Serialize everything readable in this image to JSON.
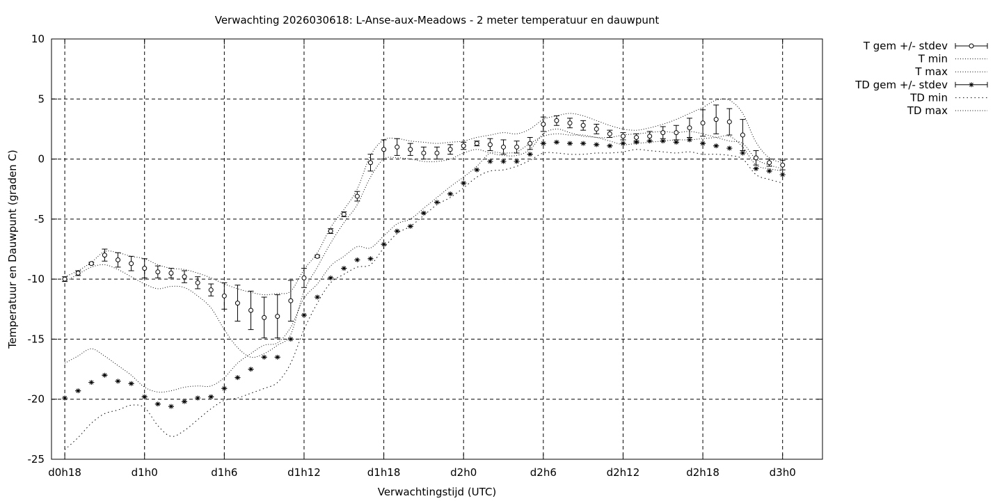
{
  "chart_data": {
    "type": "line",
    "title": "Verwachting 2026030618: L-Anse-aux-Meadows - 2 meter temperatuur en dauwpunt",
    "xlabel": "Verwachtingstijd (UTC)",
    "ylabel": "Temperatuur en Dauwpunt (graden C)",
    "ylim": [
      -25,
      10
    ],
    "xlim": [
      -1,
      57
    ],
    "grid": true,
    "legend": "top-right, outside plot",
    "x_unit": "hours after d0h0 (forecast base 2026030618)",
    "xticks": [
      {
        "x": 0,
        "label": "d0h18"
      },
      {
        "x": 6,
        "label": "d1h0"
      },
      {
        "x": 12,
        "label": "d1h6"
      },
      {
        "x": 18,
        "label": "d1h12"
      },
      {
        "x": 24,
        "label": "d1h18"
      },
      {
        "x": 30,
        "label": "d2h0"
      },
      {
        "x": 36,
        "label": "d2h6"
      },
      {
        "x": 42,
        "label": "d2h12"
      },
      {
        "x": 48,
        "label": "d2h18"
      },
      {
        "x": 54,
        "label": "d3h0"
      }
    ],
    "yticks": [
      10,
      5,
      0,
      -5,
      -10,
      -15,
      -20,
      -25
    ],
    "series": [
      {
        "name": "T gem +/- stdev",
        "style": "errorbars-circle",
        "color": "#000000",
        "x": [
          0,
          1,
          2,
          3,
          4,
          5,
          6,
          7,
          8,
          9,
          10,
          11,
          12,
          13,
          14,
          15,
          16,
          17,
          18,
          19,
          20,
          21,
          22,
          23,
          24,
          25,
          26,
          27,
          28,
          29,
          30,
          31,
          32,
          33,
          34,
          35,
          36,
          37,
          38,
          39,
          40,
          41,
          42,
          43,
          44,
          45,
          46,
          47,
          48,
          49,
          50,
          51,
          52,
          53,
          54
        ],
        "y": [
          -10.0,
          -9.5,
          -8.7,
          -8.0,
          -8.4,
          -8.7,
          -9.1,
          -9.4,
          -9.5,
          -9.8,
          -10.3,
          -10.9,
          -11.4,
          -12.0,
          -12.6,
          -13.2,
          -13.1,
          -11.8,
          -9.9,
          -8.1,
          -6.0,
          -4.6,
          -3.1,
          -0.3,
          0.8,
          1.0,
          0.8,
          0.5,
          0.5,
          0.8,
          1.1,
          1.3,
          1.2,
          1.0,
          1.0,
          1.3,
          2.9,
          3.2,
          3.0,
          2.8,
          2.5,
          2.1,
          1.9,
          1.8,
          1.9,
          2.2,
          2.2,
          2.6,
          3.0,
          3.3,
          3.1,
          2.0,
          0.1,
          -0.3,
          -0.5
        ],
        "err": [
          0.2,
          0.2,
          0.1,
          0.5,
          0.6,
          0.6,
          0.8,
          0.5,
          0.4,
          0.5,
          0.5,
          0.5,
          1.1,
          1.5,
          1.6,
          1.7,
          1.8,
          1.7,
          0.8,
          0.1,
          0.2,
          0.2,
          0.4,
          0.7,
          0.8,
          0.7,
          0.5,
          0.5,
          0.5,
          0.4,
          0.3,
          0.2,
          0.5,
          0.6,
          0.5,
          0.5,
          0.6,
          0.4,
          0.4,
          0.4,
          0.4,
          0.3,
          0.3,
          0.3,
          0.4,
          0.5,
          0.6,
          0.8,
          1.1,
          1.2,
          1.1,
          1.3,
          0.6,
          0.3,
          0.4
        ]
      },
      {
        "name": "T min",
        "style": "dotted-line",
        "color": "#000000",
        "x": [
          0,
          1,
          2,
          3,
          4,
          5,
          6,
          7,
          8,
          9,
          10,
          11,
          12,
          13,
          14,
          15,
          16,
          17,
          18,
          19,
          20,
          21,
          22,
          23,
          24,
          25,
          26,
          27,
          28,
          29,
          30,
          31,
          32,
          33,
          34,
          35,
          36,
          37,
          38,
          39,
          40,
          41,
          42,
          43,
          44,
          45,
          46,
          47,
          48,
          49,
          50,
          51,
          52,
          53,
          54
        ],
        "y": [
          -10.2,
          -9.6,
          -9.0,
          -8.8,
          -9.2,
          -9.8,
          -10.4,
          -10.8,
          -10.6,
          -10.7,
          -11.4,
          -12.4,
          -14.2,
          -15.7,
          -16.5,
          -16.2,
          -15.5,
          -14.6,
          -11.0,
          -9.0,
          -7.0,
          -5.3,
          -3.8,
          -1.5,
          0.0,
          0.1,
          0.0,
          -0.2,
          -0.2,
          0.0,
          0.5,
          0.8,
          0.5,
          0.3,
          0.3,
          0.8,
          2.1,
          2.5,
          2.2,
          1.9,
          1.8,
          1.5,
          1.2,
          1.3,
          1.4,
          1.5,
          1.6,
          1.6,
          1.7,
          1.8,
          1.9,
          1.0,
          -0.5,
          -0.8,
          -1.0
        ]
      },
      {
        "name": "T max",
        "style": "dotted-line",
        "color": "#000000",
        "x": [
          0,
          1,
          2,
          3,
          4,
          5,
          6,
          7,
          8,
          9,
          10,
          11,
          12,
          13,
          14,
          15,
          16,
          17,
          18,
          19,
          20,
          21,
          22,
          23,
          24,
          25,
          26,
          27,
          28,
          29,
          30,
          31,
          32,
          33,
          34,
          35,
          36,
          37,
          38,
          39,
          40,
          41,
          42,
          43,
          44,
          45,
          46,
          47,
          48,
          49,
          50,
          51,
          52,
          53,
          54
        ],
        "y": [
          -9.8,
          -9.3,
          -8.6,
          -7.7,
          -7.8,
          -8.1,
          -8.3,
          -8.8,
          -9.1,
          -9.2,
          -9.5,
          -9.9,
          -10.4,
          -10.8,
          -11.1,
          -11.3,
          -11.2,
          -11.0,
          -9.2,
          -7.8,
          -5.7,
          -4.2,
          -2.5,
          0.3,
          1.6,
          1.7,
          1.5,
          1.4,
          1.3,
          1.4,
          1.5,
          1.8,
          2.0,
          2.2,
          2.1,
          2.5,
          3.3,
          3.6,
          3.8,
          3.6,
          3.2,
          2.8,
          2.5,
          2.4,
          2.6,
          2.9,
          3.3,
          3.8,
          4.3,
          4.9,
          4.9,
          3.8,
          1.4,
          0.1,
          -0.3
        ]
      },
      {
        "name": "TD gem +/- stdev",
        "style": "errorbars-star",
        "color": "#000000",
        "x": [
          0,
          1,
          2,
          3,
          4,
          5,
          6,
          7,
          8,
          9,
          10,
          11,
          12,
          13,
          14,
          15,
          16,
          17,
          18,
          19,
          20,
          21,
          22,
          23,
          24,
          25,
          26,
          27,
          28,
          29,
          30,
          31,
          32,
          33,
          34,
          35,
          36,
          37,
          38,
          39,
          40,
          41,
          42,
          43,
          44,
          45,
          46,
          47,
          48,
          49,
          50,
          51,
          52,
          53,
          54
        ],
        "y": [
          -19.9,
          -19.3,
          -18.6,
          -18.0,
          -18.5,
          -18.7,
          -19.8,
          -20.4,
          -20.6,
          -20.2,
          -19.9,
          -19.8,
          -19.1,
          -18.2,
          -17.5,
          -16.5,
          -16.5,
          -15.0,
          -13.0,
          -11.5,
          -9.9,
          -9.1,
          -8.4,
          -8.3,
          -7.1,
          -6.0,
          -5.6,
          -4.5,
          -3.6,
          -2.9,
          -2.0,
          -0.9,
          -0.2,
          -0.2,
          -0.2,
          0.4,
          1.3,
          1.4,
          1.3,
          1.3,
          1.2,
          1.1,
          1.3,
          1.4,
          1.5,
          1.5,
          1.4,
          1.6,
          1.3,
          1.1,
          0.9,
          0.5,
          -0.8,
          -1.0,
          -1.3
        ]
      },
      {
        "name": "TD min",
        "style": "dotted-line",
        "color": "#000000",
        "x": [
          0,
          1,
          2,
          3,
          4,
          5,
          6,
          7,
          8,
          9,
          10,
          11,
          12,
          13,
          14,
          15,
          16,
          17,
          18,
          19,
          20,
          21,
          22,
          23,
          24,
          25,
          26,
          27,
          28,
          29,
          30,
          31,
          32,
          33,
          34,
          35,
          36,
          37,
          38,
          39,
          40,
          41,
          42,
          43,
          44,
          45,
          46,
          47,
          48,
          49,
          50,
          51,
          52,
          53,
          54
        ],
        "y": [
          -24.2,
          -23.2,
          -22.0,
          -21.2,
          -20.9,
          -20.5,
          -20.7,
          -22.2,
          -23.1,
          -22.6,
          -21.7,
          -20.8,
          -20.1,
          -19.9,
          -19.5,
          -19.1,
          -18.6,
          -17.0,
          -14.2,
          -12.0,
          -10.3,
          -9.6,
          -9.0,
          -8.8,
          -7.4,
          -6.2,
          -5.6,
          -4.7,
          -3.8,
          -3.2,
          -2.4,
          -1.5,
          -1.0,
          -0.9,
          -0.6,
          -0.1,
          0.5,
          0.5,
          0.4,
          0.4,
          0.5,
          0.5,
          0.6,
          0.8,
          0.7,
          0.6,
          0.5,
          0.6,
          0.4,
          0.4,
          0.3,
          0.0,
          -1.3,
          -1.7,
          -2.0
        ]
      },
      {
        "name": "TD max",
        "style": "dotted-line",
        "color": "#000000",
        "x": [
          0,
          1,
          2,
          3,
          4,
          5,
          6,
          7,
          8,
          9,
          10,
          11,
          12,
          13,
          14,
          15,
          16,
          17,
          18,
          19,
          20,
          21,
          22,
          23,
          24,
          25,
          26,
          27,
          28,
          29,
          30,
          31,
          32,
          33,
          34,
          35,
          36,
          37,
          38,
          39,
          40,
          41,
          42,
          43,
          44,
          45,
          46,
          47,
          48,
          49,
          50,
          51,
          52,
          53,
          54
        ],
        "y": [
          -17.0,
          -16.4,
          -15.8,
          -16.4,
          -17.2,
          -18.0,
          -19.0,
          -19.4,
          -19.3,
          -19.0,
          -18.9,
          -18.9,
          -18.2,
          -17.0,
          -16.2,
          -15.5,
          -15.3,
          -14.0,
          -11.6,
          -10.4,
          -8.9,
          -8.1,
          -7.3,
          -7.4,
          -6.4,
          -5.4,
          -5.0,
          -4.1,
          -3.2,
          -2.3,
          -1.5,
          -0.6,
          0.5,
          0.5,
          0.6,
          1.3,
          1.9,
          2.1,
          2.0,
          2.0,
          1.8,
          1.8,
          2.0,
          2.1,
          2.2,
          2.3,
          2.2,
          2.3,
          2.1,
          1.8,
          1.5,
          1.3,
          0.0,
          -0.5,
          -0.8
        ]
      }
    ]
  }
}
